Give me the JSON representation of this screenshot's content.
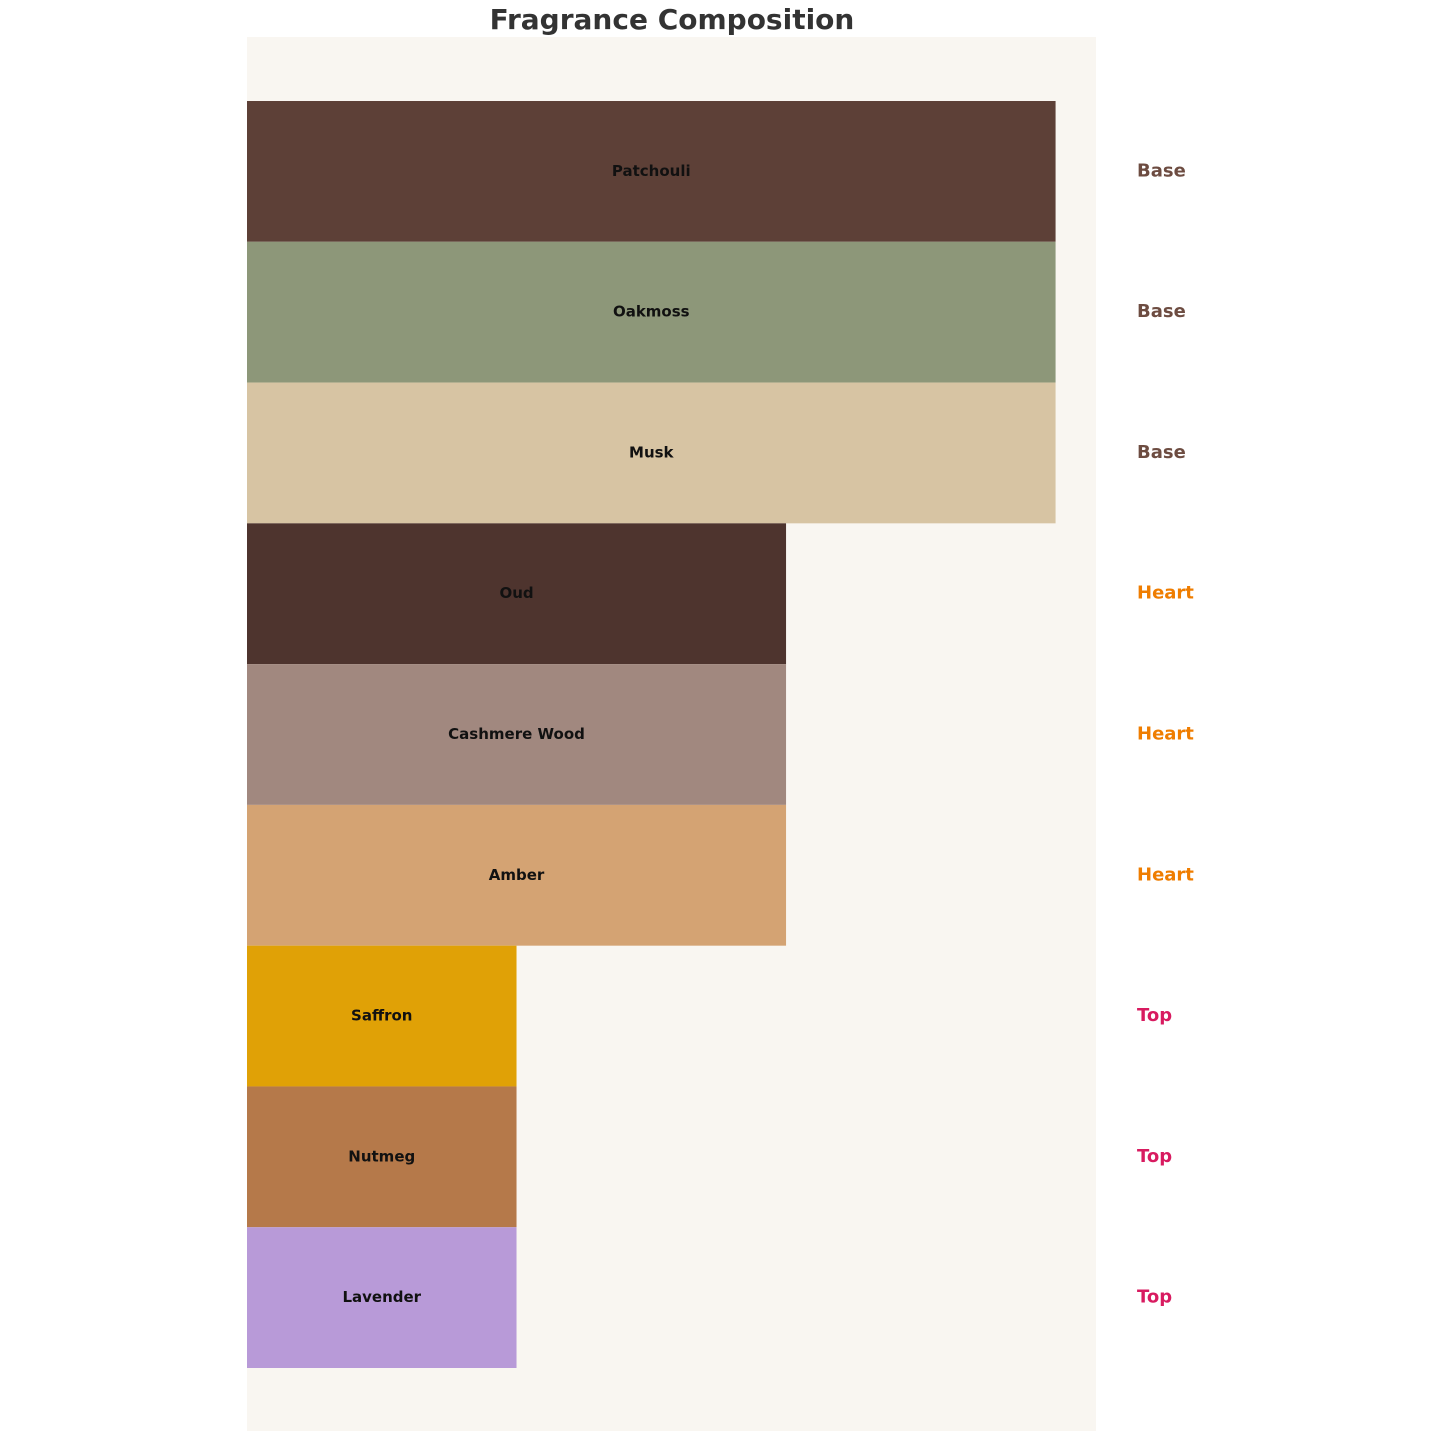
{
  "chart_data": {
    "type": "bar",
    "orientation": "horizontal",
    "title": "Fragrance Composition",
    "categories": [
      "Patchouli",
      "Oakmoss",
      "Musk",
      "Oud",
      "Cashmere Wood",
      "Amber",
      "Saffron",
      "Nutmeg",
      "Lavender"
    ],
    "values": [
      3,
      3,
      3,
      2,
      2,
      2,
      1,
      1,
      1
    ],
    "colors": [
      "#5d4037",
      "#8d9779",
      "#d7c4a3",
      "#4e342e",
      "#a1887f",
      "#d4a373",
      "#e0a106",
      "#b5794a",
      "#b89ad8"
    ],
    "layers": [
      "Base",
      "Base",
      "Base",
      "Heart",
      "Heart",
      "Heart",
      "Top",
      "Top",
      "Top"
    ],
    "layer_colors": [
      "#6d4c41",
      "#6d4c41",
      "#6d4c41",
      "#ef7d00",
      "#ef7d00",
      "#ef7d00",
      "#d81b60",
      "#d81b60",
      "#d81b60"
    ],
    "xlim": [
      0,
      3.15
    ],
    "background": "#f9f6f1"
  }
}
